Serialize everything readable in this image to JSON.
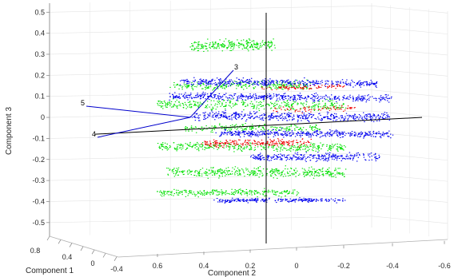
{
  "chart_data": {
    "type": "scatter",
    "title": "",
    "xlabel": "Component 1",
    "ylabel": "Component 2",
    "zlabel": "Component 3",
    "z_ticks": [
      "0.5",
      "0.4",
      "0.3",
      "0.2",
      "0.1",
      "0",
      "-0.1",
      "-0.2",
      "-0.3",
      "-0.4",
      "-0.5"
    ],
    "z_tick_values": [
      0.5,
      0.4,
      0.3,
      0.2,
      0.1,
      0,
      -0.1,
      -0.2,
      -0.3,
      -0.4,
      -0.5
    ],
    "y_ticks": [
      "0.6",
      "0.4",
      "0.2",
      "0",
      "-0.2",
      "-0.4",
      "-0.6"
    ],
    "y_tick_values": [
      0.6,
      0.4,
      0.2,
      0,
      -0.2,
      -0.4,
      -0.6
    ],
    "x_ticks": [
      "0.8",
      "0.4",
      "0",
      "-0.4"
    ],
    "x_tick_values": [
      0.8,
      0.4,
      0,
      -0.4
    ],
    "zlim": [
      -0.55,
      0.52
    ],
    "ylim": [
      0.72,
      -0.68
    ],
    "xlim": [
      -0.45,
      0.85
    ],
    "grid": true,
    "colors": {
      "green": "#00e000",
      "blue": "#0000ee",
      "red": "#ee0000",
      "axis_line": "#000000",
      "vector_line": "#0000cc",
      "grid": "#e4e4e4"
    },
    "series": [
      {
        "color": "green",
        "clusters": [
          {
            "y_range": [
              0.4,
              0.05
            ],
            "z": 0.34,
            "spread": 0.035,
            "n": 260
          },
          {
            "y_range": [
              0.5,
              -0.1
            ],
            "z": 0.15,
            "spread": 0.03,
            "n": 260
          },
          {
            "y_range": [
              0.55,
              -0.25
            ],
            "z": 0.06,
            "spread": 0.035,
            "n": 360
          },
          {
            "y_range": [
              0.45,
              -0.15
            ],
            "z": -0.05,
            "spread": 0.025,
            "n": 200
          },
          {
            "y_range": [
              0.55,
              -0.25
            ],
            "z": -0.14,
            "spread": 0.03,
            "n": 360
          },
          {
            "y_range": [
              0.5,
              -0.25
            ],
            "z": -0.26,
            "spread": 0.035,
            "n": 420
          },
          {
            "y_range": [
              0.55,
              -0.05
            ],
            "z": -0.36,
            "spread": 0.025,
            "n": 260
          }
        ]
      },
      {
        "color": "blue",
        "clusters": [
          {
            "y_range": [
              0.45,
              -0.4
            ],
            "z": 0.17,
            "spread": 0.025,
            "n": 420
          },
          {
            "y_range": [
              0.5,
              -0.45
            ],
            "z": 0.1,
            "spread": 0.025,
            "n": 480
          },
          {
            "y_range": [
              0.4,
              -0.45
            ],
            "z": 0.01,
            "spread": 0.03,
            "n": 480
          },
          {
            "y_range": [
              0.3,
              -0.45
            ],
            "z": -0.07,
            "spread": 0.025,
            "n": 420
          },
          {
            "y_range": [
              0.15,
              -0.4
            ],
            "z": -0.18,
            "spread": 0.025,
            "n": 300
          },
          {
            "y_range": [
              0.3,
              -0.25
            ],
            "z": -0.39,
            "spread": 0.015,
            "n": 240
          }
        ]
      },
      {
        "color": "red",
        "clusters": [
          {
            "y_range": [
              0.1,
              -0.25
            ],
            "z": 0.15,
            "spread": 0.015,
            "n": 90
          },
          {
            "y_range": [
              0.35,
              -0.1
            ],
            "z": -0.12,
            "spread": 0.025,
            "n": 220
          },
          {
            "y_range": [
              0.05,
              -0.3
            ],
            "z": 0.05,
            "spread": 0.02,
            "n": 70
          }
        ]
      }
    ],
    "vectors": [
      {
        "label": "5",
        "from": [
          0.19,
          -0.0
        ],
        "to": [
          0.76,
          0.03
        ]
      },
      {
        "label": "4",
        "from": [
          0.19,
          -0.0
        ],
        "to": [
          0.7,
          -0.1
        ]
      },
      {
        "label": "3",
        "from": [
          0.19,
          -0.0
        ],
        "to": [
          0.12,
          0.16
        ]
      }
    ],
    "origin_axes": true
  }
}
